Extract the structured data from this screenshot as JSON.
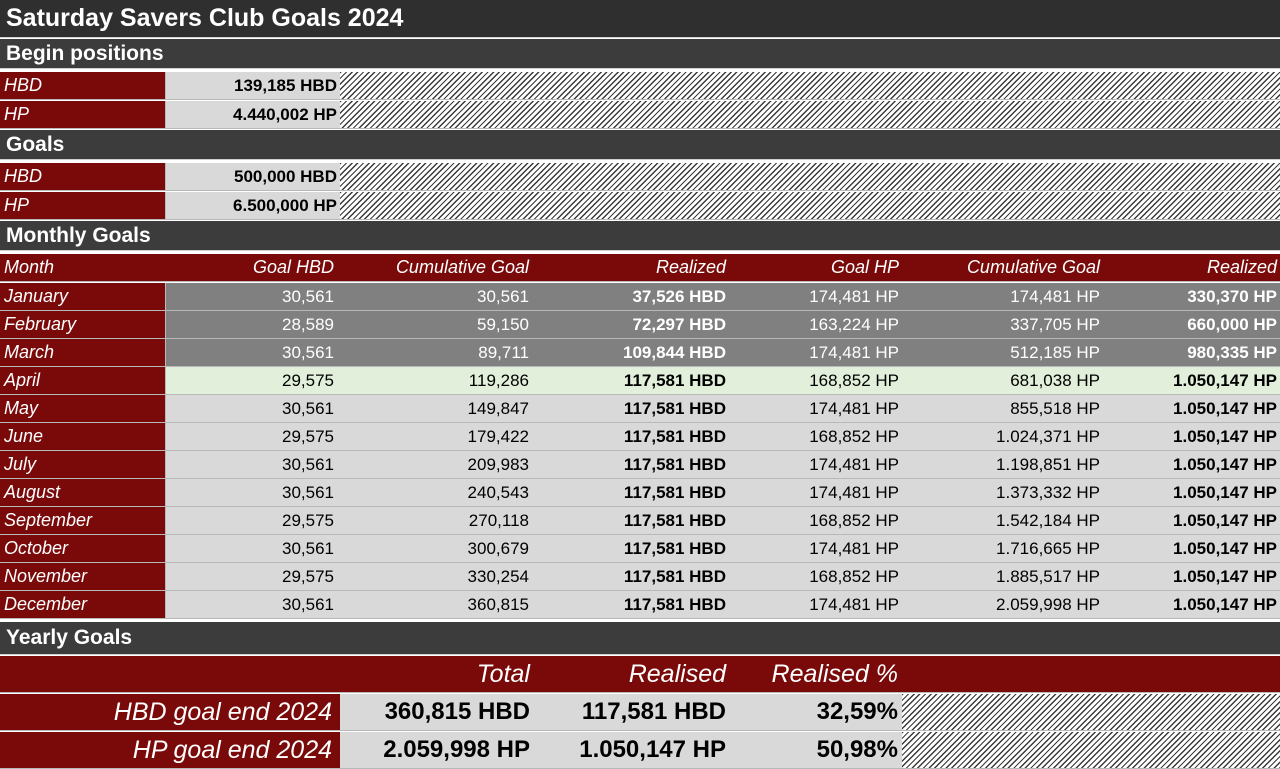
{
  "title": "Saturday Savers Club Goals 2024",
  "begin_positions": {
    "heading": "Begin positions",
    "rows": [
      {
        "label": "HBD",
        "value": "139,185 HBD"
      },
      {
        "label": "HP",
        "value": "4.440,002 HP"
      }
    ]
  },
  "goals": {
    "heading": "Goals",
    "rows": [
      {
        "label": "HBD",
        "value": "500,000 HBD"
      },
      {
        "label": "HP",
        "value": "6.500,000 HP"
      }
    ]
  },
  "monthly": {
    "heading": "Monthly Goals",
    "columns": [
      "Month",
      "Goal HBD",
      "Cumulative Goal",
      "Realized",
      "Goal HP",
      "Cumulative Goal",
      "Realized"
    ],
    "rows": [
      [
        "January",
        "30,561",
        "30,561",
        "37,526 HBD",
        "174,481 HP",
        "174,481 HP",
        "330,370 HP"
      ],
      [
        "February",
        "28,589",
        "59,150",
        "72,297 HBD",
        "163,224 HP",
        "337,705 HP",
        "660,000 HP"
      ],
      [
        "March",
        "30,561",
        "89,711",
        "109,844 HBD",
        "174,481 HP",
        "512,185 HP",
        "980,335 HP"
      ],
      [
        "April",
        "29,575",
        "119,286",
        "117,581 HBD",
        "168,852 HP",
        "681,038 HP",
        "1.050,147 HP"
      ],
      [
        "May",
        "30,561",
        "149,847",
        "117,581 HBD",
        "174,481 HP",
        "855,518 HP",
        "1.050,147 HP"
      ],
      [
        "June",
        "29,575",
        "179,422",
        "117,581 HBD",
        "168,852 HP",
        "1.024,371 HP",
        "1.050,147 HP"
      ],
      [
        "July",
        "30,561",
        "209,983",
        "117,581 HBD",
        "174,481 HP",
        "1.198,851 HP",
        "1.050,147 HP"
      ],
      [
        "August",
        "30,561",
        "240,543",
        "117,581 HBD",
        "174,481 HP",
        "1.373,332 HP",
        "1.050,147 HP"
      ],
      [
        "September",
        "29,575",
        "270,118",
        "117,581 HBD",
        "168,852 HP",
        "1.542,184 HP",
        "1.050,147 HP"
      ],
      [
        "October",
        "30,561",
        "300,679",
        "117,581 HBD",
        "174,481 HP",
        "1.716,665 HP",
        "1.050,147 HP"
      ],
      [
        "November",
        "29,575",
        "330,254",
        "117,581 HBD",
        "168,852 HP",
        "1.885,517 HP",
        "1.050,147 HP"
      ],
      [
        "December",
        "30,561",
        "360,815",
        "117,581 HBD",
        "174,481 HP",
        "2.059,998 HP",
        "1.050,147 HP"
      ]
    ]
  },
  "yearly": {
    "heading": "Yearly Goals",
    "columns": [
      "Total",
      "Realised",
      "Realised %"
    ],
    "rows": [
      [
        "HBD goal end 2024",
        "360,815 HBD",
        "117,581 HBD",
        "32,59%"
      ],
      [
        "HP goal end 2024",
        "2.059,998 HP",
        "1.050,147 HP",
        "50,98%"
      ]
    ]
  },
  "colors": {
    "title_bg": "#2f2f2f",
    "section_bg": "#3c3c3c",
    "label_bg": "#7a0a0a",
    "past_bg": "#808080",
    "current_bg": "#e2efda",
    "future_bg": "#d9d9d9"
  }
}
